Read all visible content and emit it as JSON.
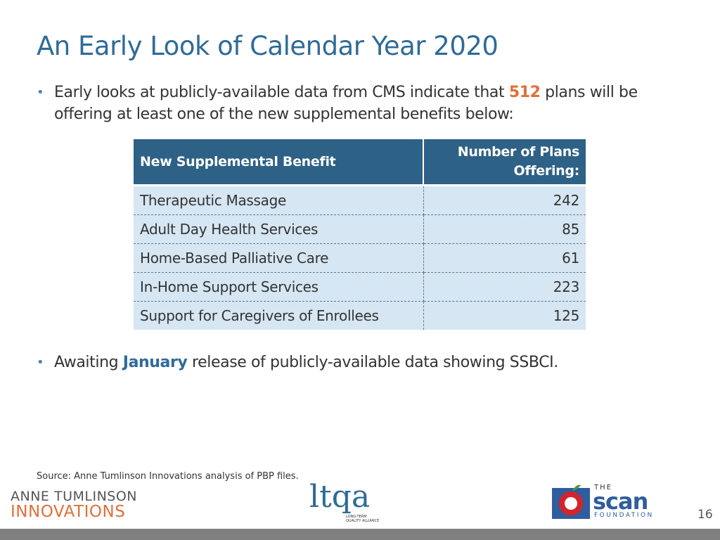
{
  "title": "An Early Look of Calendar Year 2020",
  "bullets": [
    {
      "before": "Early looks at publicly-available data from CMS indicate that ",
      "highlight": "512",
      "after": " plans will be offering at least one of the new supplemental benefits below:"
    },
    {
      "before": "Awaiting ",
      "highlight": "January",
      "after": " release of publicly-available data showing SSBCI."
    }
  ],
  "table": {
    "header": [
      "New Supplemental Benefit",
      "Number of Plans Offering:"
    ],
    "rows": [
      [
        "Therapeutic Massage",
        242
      ],
      [
        "Adult Day Health Services",
        85
      ],
      [
        "Home-Based Palliative Care",
        61
      ],
      [
        "In-Home Support Services",
        223
      ],
      [
        "Support for Caregivers of Enrollees",
        125
      ]
    ]
  },
  "source": "Source: Anne Tumlinson Innovations analysis of PBP files.",
  "footer": {
    "logo1": [
      "ANNE TUMLINSON",
      "INNOVATIONS"
    ],
    "logo2": [
      "ltqa",
      "LONG-TERM",
      "QUALITY ALLIANCE"
    ],
    "logo3": [
      "THE",
      "scan",
      "FOUNDATION"
    ],
    "page": "16"
  }
}
